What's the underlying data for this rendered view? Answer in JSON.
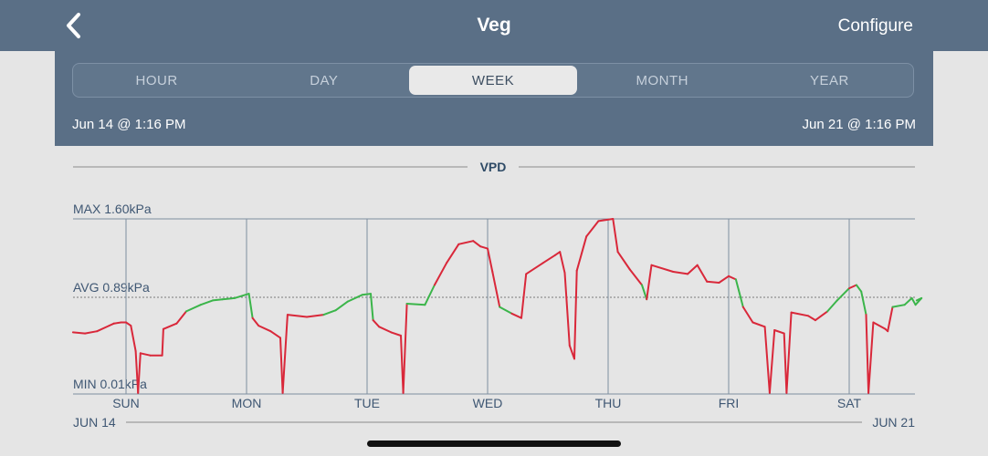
{
  "navbar": {
    "back_icon": "chevron-left-icon",
    "title": "Veg",
    "configure_label": "Configure"
  },
  "range_tabs": [
    {
      "label": "HOUR",
      "active": false
    },
    {
      "label": "DAY",
      "active": false
    },
    {
      "label": "WEEK",
      "active": true
    },
    {
      "label": "MONTH",
      "active": false
    },
    {
      "label": "YEAR",
      "active": false
    }
  ],
  "range": {
    "start": "Jun 14 @ 1:16 PM",
    "end": "Jun 21 @ 1:16 PM"
  },
  "colors": {
    "header": "#5a6f86",
    "in_range": "#3bb54a",
    "out_of_range": "#d9283a"
  },
  "chart_data": {
    "type": "line",
    "title": "VPD",
    "unit": "kPa",
    "max_label": "MAX 1.60kPa",
    "avg_label": "AVG 0.89kPa",
    "min_label": "MIN 0.01kPa",
    "ylim": [
      0.01,
      1.6
    ],
    "avg": 0.89,
    "xlim": [
      0,
      7
    ],
    "x_ticks": [
      {
        "label": "SUN",
        "x": 0
      },
      {
        "label": "MON",
        "x": 1
      },
      {
        "label": "TUE",
        "x": 2
      },
      {
        "label": "WED",
        "x": 3
      },
      {
        "label": "THU",
        "x": 4
      },
      {
        "label": "FRI",
        "x": 5
      },
      {
        "label": "SAT",
        "x": 6
      }
    ],
    "x_start_label": "JUN 14",
    "x_end_label": "JUN 21",
    "series": [
      {
        "points": [
          [
            -0.44,
            0.57
          ],
          [
            -0.34,
            0.56
          ],
          [
            -0.24,
            0.58
          ],
          [
            -0.14,
            0.63
          ],
          [
            -0.1,
            0.65
          ],
          [
            -0.04,
            0.66
          ],
          [
            0,
            0.66
          ],
          [
            0.04,
            0.63
          ],
          [
            0.08,
            0.4
          ],
          [
            0.1,
            0.02
          ],
          [
            0.12,
            0.38
          ],
          [
            0.2,
            0.36
          ],
          [
            0.3,
            0.36
          ],
          [
            0.31,
            0.6
          ],
          [
            0.42,
            0.65
          ],
          [
            0.5,
            0.76
          ],
          [
            0.62,
            0.82
          ],
          [
            0.72,
            0.86
          ],
          [
            0.8,
            0.87
          ],
          [
            0.9,
            0.88
          ],
          [
            1.02,
            0.92
          ],
          [
            1.05,
            0.7
          ],
          [
            1.1,
            0.63
          ],
          [
            1.2,
            0.58
          ],
          [
            1.28,
            0.52
          ],
          [
            1.3,
            0.02
          ],
          [
            1.34,
            0.73
          ],
          [
            1.5,
            0.71
          ],
          [
            1.64,
            0.73
          ],
          [
            1.74,
            0.77
          ],
          [
            1.84,
            0.85
          ],
          [
            1.96,
            0.91
          ],
          [
            2.03,
            0.92
          ],
          [
            2.05,
            0.68
          ],
          [
            2.1,
            0.62
          ],
          [
            2.2,
            0.57
          ],
          [
            2.28,
            0.54
          ],
          [
            2.3,
            0.02
          ],
          [
            2.33,
            0.83
          ],
          [
            2.48,
            0.82
          ],
          [
            2.56,
            1.0
          ],
          [
            2.66,
            1.2
          ],
          [
            2.76,
            1.37
          ],
          [
            2.88,
            1.4
          ],
          [
            2.94,
            1.35
          ],
          [
            3.0,
            1.33
          ],
          [
            3.04,
            1.12
          ],
          [
            3.1,
            0.8
          ],
          [
            3.2,
            0.74
          ],
          [
            3.28,
            0.7
          ],
          [
            3.32,
            1.1
          ],
          [
            3.46,
            1.2
          ],
          [
            3.56,
            1.27
          ],
          [
            3.6,
            1.3
          ],
          [
            3.64,
            1.11
          ],
          [
            3.68,
            0.45
          ],
          [
            3.72,
            0.33
          ],
          [
            3.74,
            1.13
          ],
          [
            3.82,
            1.44
          ],
          [
            3.92,
            1.58
          ],
          [
            4.04,
            1.6
          ],
          [
            4.08,
            1.3
          ],
          [
            4.18,
            1.14
          ],
          [
            4.28,
            1.0
          ],
          [
            4.32,
            0.87
          ],
          [
            4.36,
            1.18
          ],
          [
            4.54,
            1.12
          ],
          [
            4.66,
            1.1
          ],
          [
            4.74,
            1.18
          ],
          [
            4.82,
            1.03
          ],
          [
            4.92,
            1.02
          ],
          [
            5.0,
            1.08
          ],
          [
            5.06,
            1.05
          ],
          [
            5.12,
            0.8
          ],
          [
            5.2,
            0.66
          ],
          [
            5.3,
            0.62
          ],
          [
            5.34,
            0.02
          ],
          [
            5.38,
            0.59
          ],
          [
            5.46,
            0.56
          ],
          [
            5.48,
            0.02
          ],
          [
            5.52,
            0.75
          ],
          [
            5.66,
            0.72
          ],
          [
            5.72,
            0.68
          ],
          [
            5.82,
            0.76
          ],
          [
            5.9,
            0.86
          ],
          [
            6.0,
            0.97
          ],
          [
            6.06,
            1.0
          ],
          [
            6.1,
            0.94
          ],
          [
            6.14,
            0.73
          ],
          [
            6.16,
            0.02
          ],
          [
            6.2,
            0.66
          ],
          [
            6.3,
            0.6
          ],
          [
            6.32,
            0.58
          ],
          [
            6.36,
            0.8
          ],
          [
            6.46,
            0.82
          ],
          [
            6.52,
            0.88
          ],
          [
            6.55,
            0.82
          ],
          [
            6.6,
            0.88
          ],
          [
            6.56,
            0.86
          ]
        ]
      }
    ]
  }
}
